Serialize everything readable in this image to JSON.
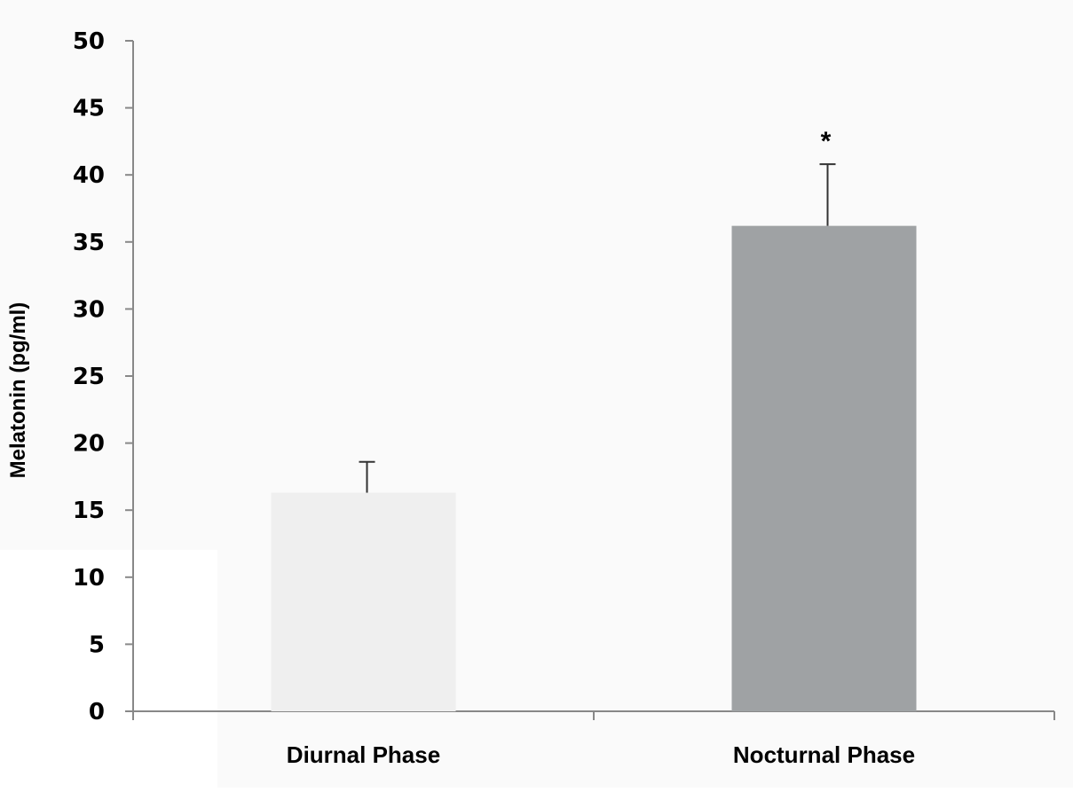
{
  "chart_data": {
    "type": "bar",
    "categories": [
      "Diurnal Phase",
      "Nocturnal Phase"
    ],
    "values": [
      16.3,
      36.2
    ],
    "error_upper": [
      18.6,
      40.8
    ],
    "bar_colors": [
      "#efefef",
      "#9fa2a4"
    ],
    "annotations": [
      {
        "category_index": 1,
        "text": "*"
      }
    ],
    "xlabel": "",
    "ylabel": "Melatonin (pg/ml)",
    "ylim": [
      0,
      50
    ],
    "yticks": [
      0,
      5,
      10,
      15,
      20,
      25,
      30,
      35,
      40,
      45,
      50
    ],
    "grid": false,
    "legend": "none",
    "background": "#fafafa",
    "axis_color": "#888888"
  }
}
